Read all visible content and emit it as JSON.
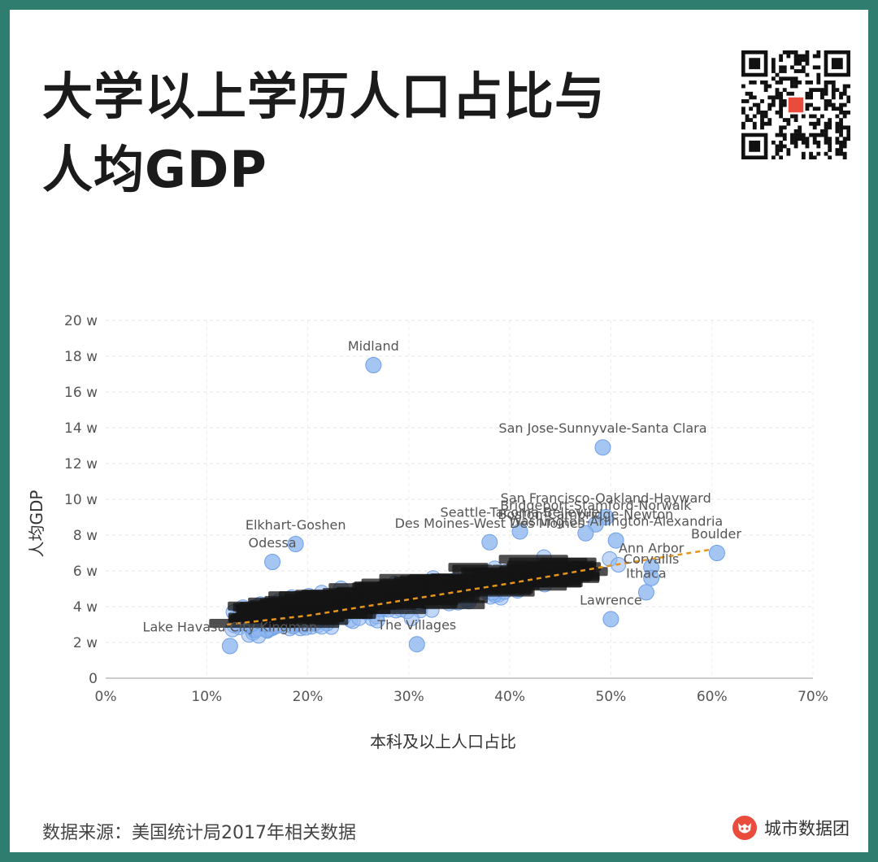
{
  "title_line1": "大学以上学历人口占比与",
  "title_line2": "人均GDP",
  "source": "数据来源：美国统计局2017年相关数据",
  "brand": "城市数据团",
  "qr_icon": "qr-code-icon",
  "colors": {
    "frame": "#2e7d6f",
    "point": "#6ea0e8",
    "trend": "#e6951c",
    "brand": "#e94b3c"
  },
  "chart_data": {
    "type": "scatter",
    "xlabel": "本科及以上人口占比",
    "ylabel": "人均GDP",
    "x_ticks": [
      "0%",
      "10%",
      "20%",
      "30%",
      "40%",
      "50%",
      "60%",
      "70%"
    ],
    "y_ticks": [
      "0",
      "2 w",
      "4 w",
      "6 w",
      "8 w",
      "10 w",
      "12 w",
      "14 w",
      "16 w",
      "18 w",
      "20 w"
    ],
    "xlim": [
      0,
      70
    ],
    "ylim": [
      0,
      20
    ],
    "grid": true,
    "trendline": [
      [
        12,
        3.0
      ],
      [
        20,
        3.5
      ],
      [
        30,
        4.4
      ],
      [
        40,
        5.3
      ],
      [
        50,
        6.3
      ],
      [
        60,
        7.2
      ]
    ],
    "labeled_points": [
      {
        "name": "Midland",
        "x": 26.5,
        "y": 17.5
      },
      {
        "name": "San Jose-Sunnyvale-Santa Clara",
        "x": 49.2,
        "y": 12.9
      },
      {
        "name": "San Francisco-Oakland-Hayward",
        "x": 49.5,
        "y": 9.0
      },
      {
        "name": "Bridgeport-Stamford-Norwalk",
        "x": 48.5,
        "y": 8.6
      },
      {
        "name": "Seattle-Tacoma-Bellevue",
        "x": 41.0,
        "y": 8.2
      },
      {
        "name": "Boston-Cambridge-Newton",
        "x": 47.5,
        "y": 8.1
      },
      {
        "name": "Washington-Arlington-Alexandria",
        "x": 50.5,
        "y": 7.7
      },
      {
        "name": "Des Moines-West Des Moines",
        "x": 38.0,
        "y": 7.6
      },
      {
        "name": "Elkhart-Goshen",
        "x": 18.8,
        "y": 7.5
      },
      {
        "name": "Boulder",
        "x": 60.5,
        "y": 7.0
      },
      {
        "name": "Odessa",
        "x": 16.5,
        "y": 6.5
      },
      {
        "name": "Ann Arbor",
        "x": 54.0,
        "y": 6.2
      },
      {
        "name": "Corvallis",
        "x": 54.0,
        "y": 5.6
      },
      {
        "name": "Ithaca",
        "x": 53.5,
        "y": 4.8
      },
      {
        "name": "Lawrence",
        "x": 50.0,
        "y": 3.3
      },
      {
        "name": "Lake Havasu City-Kingman",
        "x": 12.3,
        "y": 1.8
      },
      {
        "name": "The Villages",
        "x": 30.8,
        "y": 1.9
      }
    ]
  }
}
